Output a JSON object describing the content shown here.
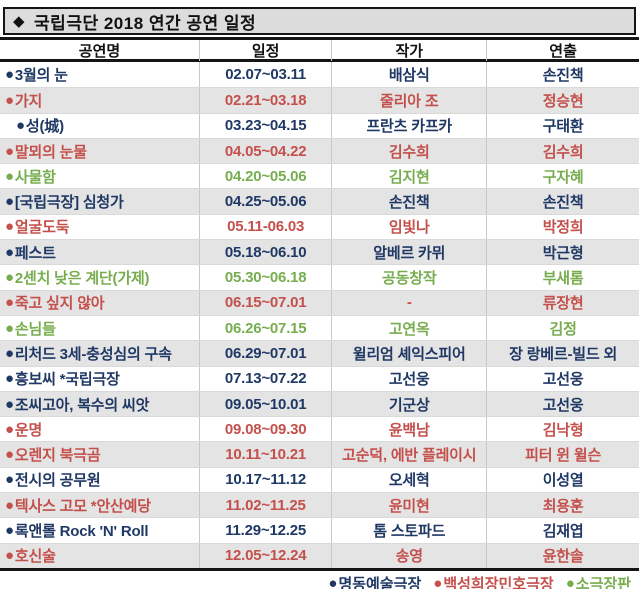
{
  "title_icon": "◆",
  "title": "국립극단 2018 연간 공연 일정",
  "columns": [
    "공연명",
    "일정",
    "작가",
    "연출"
  ],
  "bullet": "●",
  "venues": {
    "blue": {
      "label": "명동예술극장",
      "color": "#1f3864"
    },
    "red": {
      "label": "백성희장민호극장",
      "color": "#c4504c"
    },
    "green": {
      "label": "소극장판",
      "color": "#77ad4f"
    }
  },
  "legend_order": [
    "blue",
    "red",
    "green"
  ],
  "rows": [
    {
      "title": "3월의 눈",
      "schedule": "02.07~03.11",
      "writer": "배삼식",
      "director": "손진책",
      "venue": "blue",
      "indent": false
    },
    {
      "title": "가지",
      "schedule": "02.21~03.18",
      "writer": "줄리아 조",
      "director": "정승현",
      "venue": "red",
      "indent": false
    },
    {
      "title": "성(城)",
      "schedule": "03.23~04.15",
      "writer": "프란츠 카프카",
      "director": "구태환",
      "venue": "blue",
      "indent": true
    },
    {
      "title": "말뫼의 눈물",
      "schedule": "04.05~04.22",
      "writer": "김수희",
      "director": "김수희",
      "venue": "red",
      "indent": false
    },
    {
      "title": "사물함",
      "schedule": "04.20~05.06",
      "writer": "김지현",
      "director": "구자혜",
      "venue": "green",
      "indent": false
    },
    {
      "title": "[국립극장] 심청가",
      "schedule": "04.25~05.06",
      "writer": "손진책",
      "director": "손진책",
      "venue": "blue",
      "indent": false
    },
    {
      "title": "얼굴도둑",
      "schedule": "05.11-06.03",
      "writer": "임빛나",
      "director": "박정희",
      "venue": "red",
      "indent": false
    },
    {
      "title": "페스트",
      "schedule": "05.18~06.10",
      "writer": "알베르 카뮈",
      "director": "박근형",
      "venue": "blue",
      "indent": false
    },
    {
      "title": "2센치 낮은 계단(가제)",
      "schedule": "05.30~06.18",
      "writer": "공동창작",
      "director": "부새롬",
      "venue": "green",
      "indent": false
    },
    {
      "title": "죽고 싶지 않아",
      "schedule": "06.15~07.01",
      "writer": "-",
      "director": "류장현",
      "venue": "red",
      "indent": false
    },
    {
      "title": "손님들",
      "schedule": "06.26~07.15",
      "writer": "고연옥",
      "director": "김정",
      "venue": "green",
      "indent": false
    },
    {
      "title": "리처드 3세-충성심의 구속",
      "schedule": "06.29~07.01",
      "writer": "윌리엄 셰익스피어",
      "director": "장 랑베르-빌드 외",
      "venue": "blue",
      "indent": false
    },
    {
      "title": "흥보씨 *국립극장",
      "schedule": "07.13~07.22",
      "writer": "고선웅",
      "director": "고선웅",
      "venue": "blue",
      "indent": false
    },
    {
      "title": "조씨고아, 복수의 씨앗",
      "schedule": "09.05~10.01",
      "writer": "기군상",
      "director": "고선웅",
      "venue": "blue",
      "indent": false
    },
    {
      "title": "운명",
      "schedule": "09.08~09.30",
      "writer": "윤백남",
      "director": "김낙형",
      "venue": "red",
      "indent": false
    },
    {
      "title": "오렌지 북극곰",
      "schedule": "10.11~10.21",
      "writer": "고순덕, 에반 플레이시",
      "director": "피터 윈 윌슨",
      "venue": "red",
      "indent": false
    },
    {
      "title": "전시의 공무원",
      "schedule": "10.17~11.12",
      "writer": "오세혁",
      "director": "이성열",
      "venue": "blue",
      "indent": false
    },
    {
      "title": "텍사스 고모 *안산예당",
      "schedule": "11.02~11.25",
      "writer": "윤미현",
      "director": "최용훈",
      "venue": "red",
      "indent": false
    },
    {
      "title": "록앤롤 Rock 'N' Roll",
      "schedule": "11.29~12.25",
      "writer": "톰 스토파드",
      "director": "김재엽",
      "venue": "blue",
      "indent": false
    },
    {
      "title": "호신술",
      "schedule": "12.05~12.24",
      "writer": "송영",
      "director": "윤한솔",
      "venue": "red",
      "indent": false
    }
  ]
}
